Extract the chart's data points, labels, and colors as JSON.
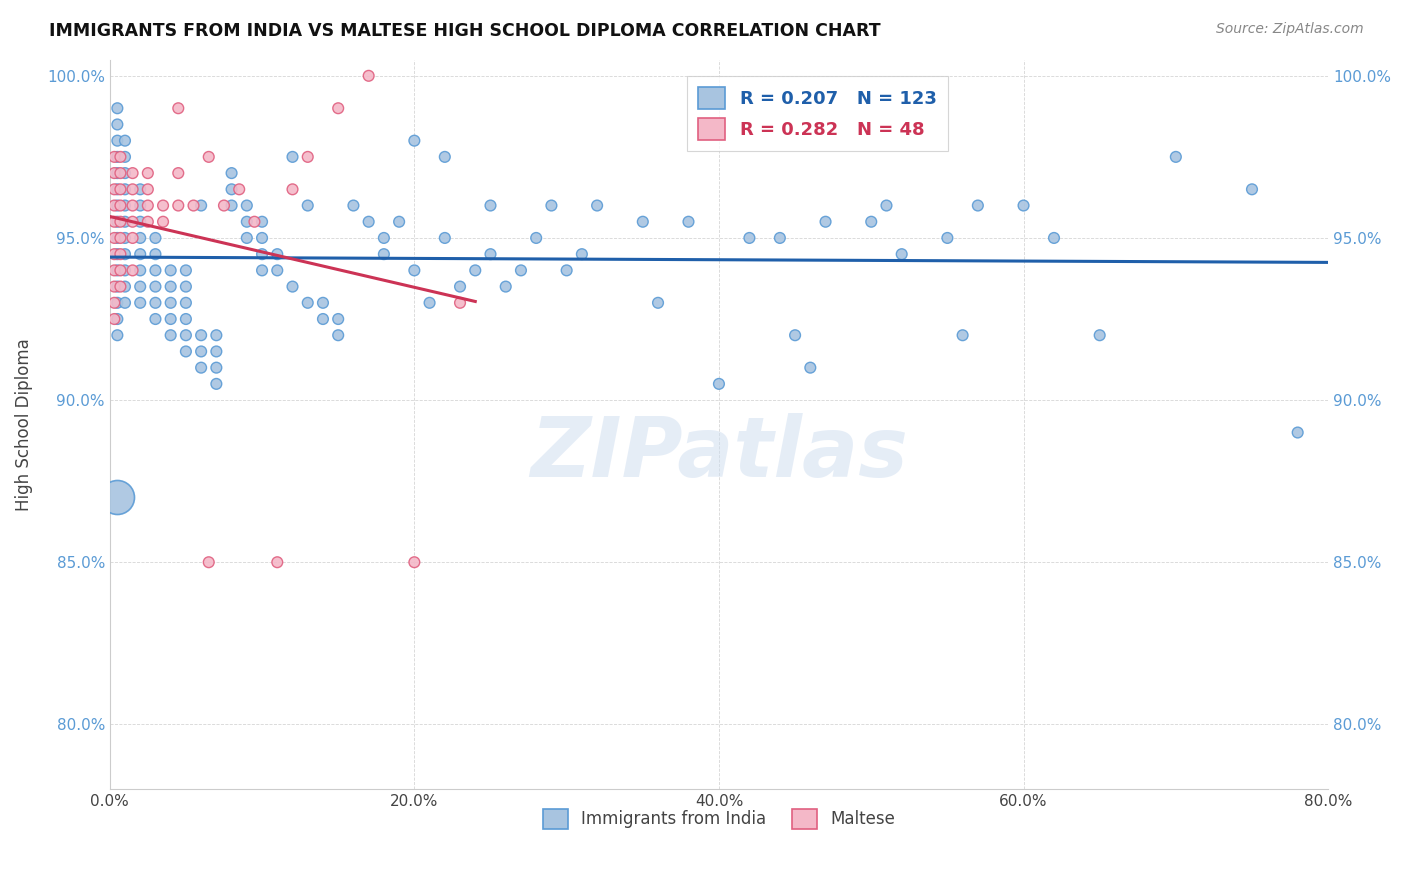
{
  "title": "IMMIGRANTS FROM INDIA VS MALTESE HIGH SCHOOL DIPLOMA CORRELATION CHART",
  "source": "Source: ZipAtlas.com",
  "ylabel": "High School Diploma",
  "xlim": [
    0.0,
    0.8
  ],
  "ylim": [
    0.78,
    1.005
  ],
  "xtick_labels": [
    "0.0%",
    "20.0%",
    "40.0%",
    "60.0%",
    "80.0%"
  ],
  "xtick_vals": [
    0.0,
    0.2,
    0.4,
    0.6,
    0.8
  ],
  "ytick_labels": [
    "80.0%",
    "85.0%",
    "90.0%",
    "95.0%",
    "100.0%"
  ],
  "ytick_vals": [
    0.8,
    0.85,
    0.9,
    0.95,
    1.0
  ],
  "blue_color": "#a8c4e0",
  "blue_edge_color": "#5b9bd5",
  "pink_color": "#f4b8c8",
  "pink_edge_color": "#e06080",
  "trend_blue_color": "#1f5faa",
  "trend_pink_color": "#cc3355",
  "legend_R1": "0.207",
  "legend_N1": "123",
  "legend_R2": "0.282",
  "legend_N2": "48",
  "legend_label1": "Immigrants from India",
  "legend_label2": "Maltese",
  "watermark": "ZIPatlas",
  "blue_scatter_x": [
    0.005,
    0.005,
    0.005,
    0.005,
    0.005,
    0.005,
    0.005,
    0.005,
    0.005,
    0.005,
    0.005,
    0.005,
    0.005,
    0.005,
    0.005,
    0.01,
    0.01,
    0.01,
    0.01,
    0.01,
    0.01,
    0.01,
    0.01,
    0.01,
    0.01,
    0.01,
    0.02,
    0.02,
    0.02,
    0.02,
    0.02,
    0.02,
    0.02,
    0.02,
    0.03,
    0.03,
    0.03,
    0.03,
    0.03,
    0.03,
    0.04,
    0.04,
    0.04,
    0.04,
    0.04,
    0.05,
    0.05,
    0.05,
    0.05,
    0.05,
    0.05,
    0.06,
    0.06,
    0.06,
    0.06,
    0.07,
    0.07,
    0.07,
    0.07,
    0.08,
    0.08,
    0.08,
    0.09,
    0.09,
    0.09,
    0.1,
    0.1,
    0.1,
    0.1,
    0.11,
    0.11,
    0.12,
    0.12,
    0.13,
    0.13,
    0.14,
    0.14,
    0.15,
    0.15,
    0.16,
    0.17,
    0.18,
    0.18,
    0.19,
    0.2,
    0.2,
    0.21,
    0.22,
    0.22,
    0.23,
    0.24,
    0.25,
    0.25,
    0.26,
    0.27,
    0.28,
    0.29,
    0.3,
    0.31,
    0.32,
    0.35,
    0.36,
    0.38,
    0.4,
    0.42,
    0.44,
    0.45,
    0.46,
    0.47,
    0.5,
    0.51,
    0.52,
    0.55,
    0.56,
    0.57,
    0.6,
    0.62,
    0.65,
    0.7,
    0.75,
    0.78
  ],
  "blue_scatter_y": [
    0.94,
    0.945,
    0.95,
    0.955,
    0.96,
    0.965,
    0.97,
    0.975,
    0.98,
    0.985,
    0.99,
    0.935,
    0.93,
    0.925,
    0.92,
    0.94,
    0.945,
    0.95,
    0.955,
    0.96,
    0.965,
    0.97,
    0.975,
    0.98,
    0.935,
    0.93,
    0.93,
    0.935,
    0.94,
    0.945,
    0.95,
    0.955,
    0.96,
    0.965,
    0.925,
    0.93,
    0.935,
    0.94,
    0.945,
    0.95,
    0.92,
    0.925,
    0.93,
    0.935,
    0.94,
    0.915,
    0.92,
    0.925,
    0.93,
    0.935,
    0.94,
    0.91,
    0.915,
    0.92,
    0.96,
    0.905,
    0.91,
    0.915,
    0.92,
    0.96,
    0.965,
    0.97,
    0.95,
    0.955,
    0.96,
    0.94,
    0.945,
    0.95,
    0.955,
    0.94,
    0.945,
    0.935,
    0.975,
    0.93,
    0.96,
    0.925,
    0.93,
    0.92,
    0.925,
    0.96,
    0.955,
    0.945,
    0.95,
    0.955,
    0.94,
    0.98,
    0.93,
    0.95,
    0.975,
    0.935,
    0.94,
    0.945,
    0.96,
    0.935,
    0.94,
    0.95,
    0.96,
    0.94,
    0.945,
    0.96,
    0.955,
    0.93,
    0.955,
    0.905,
    0.95,
    0.95,
    0.92,
    0.91,
    0.955,
    0.955,
    0.96,
    0.945,
    0.95,
    0.92,
    0.96,
    0.96,
    0.95,
    0.92,
    0.975,
    0.965,
    0.89
  ],
  "blue_scatter_sizes": [
    60,
    60,
    60,
    60,
    60,
    60,
    60,
    60,
    60,
    60,
    60,
    60,
    60,
    60,
    60,
    60,
    60,
    60,
    60,
    60,
    60,
    60,
    60,
    60,
    60,
    60,
    60,
    60,
    60,
    60,
    60,
    60,
    60,
    60,
    60,
    60,
    60,
    60,
    60,
    60,
    60,
    60,
    60,
    60,
    60,
    60,
    60,
    60,
    60,
    60,
    60,
    60,
    60,
    60,
    60,
    60,
    60,
    60,
    60,
    60,
    60,
    60,
    60,
    60,
    60,
    60,
    60,
    60,
    60,
    60,
    60,
    60,
    60,
    60,
    60,
    60,
    60,
    60,
    60,
    60,
    60,
    60,
    60,
    60,
    60,
    60,
    60,
    60,
    60,
    60,
    60,
    60,
    60,
    60,
    60,
    60,
    60,
    60,
    60,
    60,
    60,
    60,
    60,
    60,
    60,
    60,
    60,
    60,
    60,
    60,
    60,
    60,
    60,
    60,
    60,
    60,
    60,
    60,
    60,
    60,
    60
  ],
  "blue_big_x": [
    0.005
  ],
  "blue_big_y": [
    0.87
  ],
  "pink_scatter_x": [
    0.003,
    0.003,
    0.003,
    0.003,
    0.003,
    0.003,
    0.003,
    0.003,
    0.003,
    0.003,
    0.003,
    0.007,
    0.007,
    0.007,
    0.007,
    0.007,
    0.007,
    0.007,
    0.007,
    0.007,
    0.015,
    0.015,
    0.015,
    0.015,
    0.015,
    0.015,
    0.025,
    0.025,
    0.025,
    0.025,
    0.035,
    0.035,
    0.045,
    0.045,
    0.045,
    0.055,
    0.065,
    0.065,
    0.075,
    0.085,
    0.095,
    0.11,
    0.12,
    0.13,
    0.15,
    0.17,
    0.2,
    0.23
  ],
  "pink_scatter_y": [
    0.975,
    0.97,
    0.965,
    0.96,
    0.955,
    0.95,
    0.945,
    0.94,
    0.935,
    0.93,
    0.925,
    0.975,
    0.97,
    0.965,
    0.96,
    0.955,
    0.95,
    0.945,
    0.94,
    0.935,
    0.97,
    0.965,
    0.96,
    0.955,
    0.95,
    0.94,
    0.965,
    0.96,
    0.955,
    0.97,
    0.96,
    0.955,
    0.97,
    0.96,
    0.99,
    0.96,
    0.975,
    0.85,
    0.96,
    0.965,
    0.955,
    0.85,
    0.965,
    0.975,
    0.99,
    1.0,
    0.85,
    0.93
  ],
  "pink_scatter_sizes": [
    60,
    60,
    60,
    60,
    60,
    60,
    60,
    60,
    60,
    60,
    60,
    60,
    60,
    60,
    60,
    60,
    60,
    60,
    60,
    60,
    60,
    60,
    60,
    60,
    60,
    60,
    60,
    60,
    60,
    60,
    60,
    60,
    60,
    60,
    60,
    60,
    60,
    60,
    60,
    60,
    60,
    60,
    60,
    60,
    60,
    60,
    60,
    60
  ]
}
